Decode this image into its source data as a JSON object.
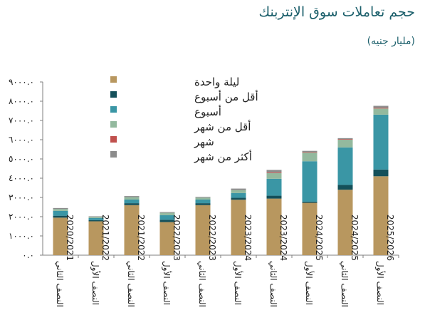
{
  "title": "حجم تعاملات سوق الإنتربنك",
  "subtitle": "(مليار جنيه)",
  "chart_data": {
    "type": "bar",
    "stacked": true,
    "ylim": [
      0,
      9000
    ],
    "yticks": [
      "٠.٠",
      "١٠٠٠.٠",
      "٢٠٠٠.٠",
      "٣٠٠٠.٠",
      "٤٠٠٠.٠",
      "٥٠٠٠.٠",
      "٦٠٠٠.٠",
      "٧٠٠٠.٠",
      "٨٠٠٠.٠",
      "٩٠٠٠.٠"
    ],
    "ytick_values": [
      0,
      1000,
      2000,
      3000,
      4000,
      5000,
      6000,
      7000,
      8000,
      9000
    ],
    "categories": [
      {
        "half": "النصف الثاني",
        "year": "2020/2021"
      },
      {
        "half": "النصف الأول",
        "year": "2021/2022"
      },
      {
        "half": "النصف الثاني",
        "year": "2021/2022"
      },
      {
        "half": "النصف الأول",
        "year": "2022/2023"
      },
      {
        "half": "النصف الثاني",
        "year": "2022/2023"
      },
      {
        "half": "النصف الأول",
        "year": "2023/2024"
      },
      {
        "half": "النصف الثاني",
        "year": "2023/2024"
      },
      {
        "half": "النصف الأول",
        "year": "2024/2025"
      },
      {
        "half": "النصف الثاني",
        "year": "2024/2025"
      },
      {
        "half": "النصف الأول",
        "year": "2025/2026"
      }
    ],
    "series": [
      {
        "name": "ليلة واحدة",
        "color": "#b8975f",
        "values": [
          1950,
          1760,
          2600,
          1720,
          2600,
          2880,
          2940,
          2720,
          3400,
          4100
        ]
      },
      {
        "name": "أقل من أسبوع",
        "color": "#14505a",
        "values": [
          100,
          60,
          100,
          120,
          100,
          100,
          150,
          60,
          250,
          350
        ]
      },
      {
        "name": "أسبوع",
        "color": "#3a96a5",
        "values": [
          250,
          110,
          190,
          240,
          190,
          250,
          880,
          2100,
          1950,
          2850
        ]
      },
      {
        "name": "أقل من شهر",
        "color": "#93b99e",
        "values": [
          100,
          60,
          130,
          120,
          100,
          150,
          300,
          450,
          400,
          320
        ]
      },
      {
        "name": "شهر",
        "color": "#c0504d",
        "values": [
          0,
          0,
          0,
          0,
          0,
          0,
          40,
          30,
          30,
          40
        ]
      },
      {
        "name": "أكثر من شهر",
        "color": "#8c8c8c",
        "values": [
          50,
          30,
          50,
          40,
          40,
          80,
          120,
          60,
          50,
          100
        ]
      }
    ]
  }
}
